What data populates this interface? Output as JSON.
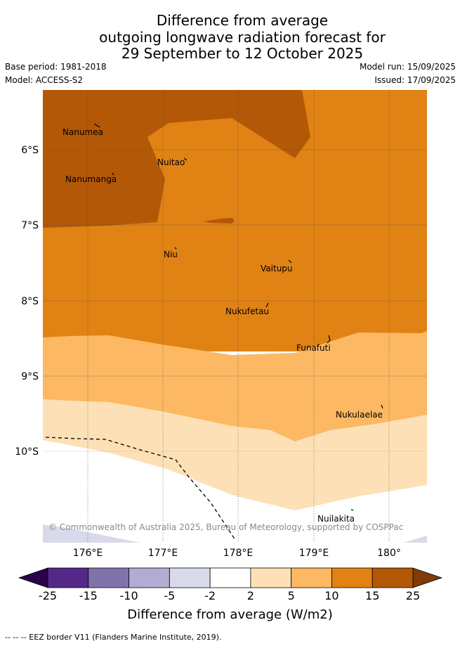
{
  "title": {
    "line1": "Difference from average",
    "line2": "outgoing longwave radiation forecast for",
    "line3": "29 September to 12 October 2025"
  },
  "meta": {
    "base_period": "Base period: 1981-2018",
    "model": "Model: ACCESS-S2",
    "model_run": "Model run: 15/09/2025",
    "issued": "Issued: 17/09/2025"
  },
  "map": {
    "lat_ticks": [
      "6°S",
      "7°S",
      "8°S",
      "9°S",
      "10°S"
    ],
    "lon_ticks": [
      "176°E",
      "177°E",
      "178°E",
      "179°E",
      "180°"
    ],
    "places": [
      "Nanumea",
      "Nuitao",
      "Nanumanga",
      "Niu",
      "Vaitupu",
      "Nukufetau",
      "Funafuti",
      "Nukulaelae",
      "Nuilakita"
    ],
    "copyright": "© Commonwealth of Australia 2025, Bureau of Meteorology, supported by COSPPac",
    "colors": {
      "class_10_15": "#e08214",
      "class_15_25": "#b35806",
      "class_5_10": "#fdb863",
      "class_2_5": "#fee0b6",
      "class_neg5_neg2": "#d8daeb"
    }
  },
  "colorbar": {
    "ticks": [
      "-25",
      "-15",
      "-10",
      "-5",
      "-2",
      "2",
      "5",
      "10",
      "15",
      "25"
    ],
    "colors": [
      "#542788",
      "#8073ac",
      "#b2abd2",
      "#d8daeb",
      "#ffffff",
      "#fee0b6",
      "#fdb863",
      "#e08214",
      "#b35806"
    ],
    "under_color": "#2d004b",
    "over_color": "#7f3b08",
    "title": "Difference from average (W/m2)"
  },
  "legend": {
    "text": "--  --  -- EEZ border V11 (Flanders Marine Institute, 2019)."
  }
}
